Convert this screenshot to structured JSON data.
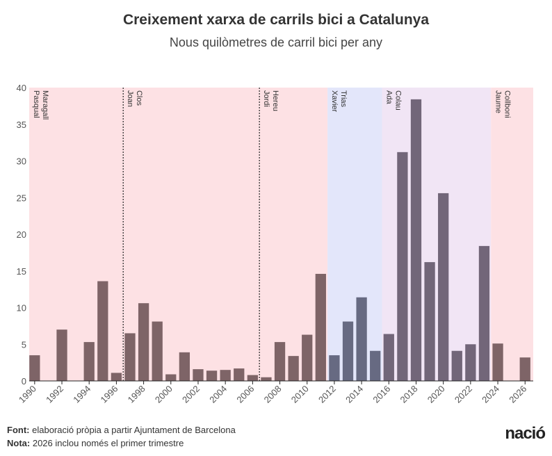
{
  "title": "Creixement xarxa de carrils bici a Catalunya",
  "subtitle": "Nous quilòmetres de carril bici per any",
  "footer": {
    "source_label": "Font:",
    "source_text": "elaboració pròpia a partir Ajuntament de Barcelona",
    "note_label": "Nota:",
    "note_text": "2026 inclou només el primer trimestre"
  },
  "logo": "nació",
  "colors": {
    "pink_band": "#fde1e4",
    "blue_band": "#e3e6fa",
    "purple_band": "#f1e5f5",
    "bar_brown": "#7e6467",
    "bar_blue": "#676a82",
    "bar_purple": "#726679",
    "axis": "#222222"
  },
  "chart_data": {
    "type": "bar",
    "title": "Creixement xarxa de carrils bici a Catalunya",
    "subtitle": "Nous quilòmetres de carril bici per any",
    "ylim": [
      0,
      40
    ],
    "yticks": [
      0,
      5,
      10,
      15,
      20,
      25,
      30,
      35,
      40
    ],
    "xticks": [
      1990,
      1992,
      1994,
      1996,
      1998,
      2000,
      2002,
      2004,
      2006,
      2008,
      2010,
      2012,
      2014,
      2016,
      2018,
      2020,
      2022,
      2024,
      2026
    ],
    "x": [
      1990,
      1991,
      1992,
      1993,
      1994,
      1995,
      1996,
      1997,
      1998,
      1999,
      2000,
      2001,
      2002,
      2003,
      2004,
      2005,
      2006,
      2007,
      2008,
      2009,
      2010,
      2011,
      2012,
      2013,
      2014,
      2015,
      2016,
      2017,
      2018,
      2019,
      2020,
      2021,
      2022,
      2023,
      2024,
      2025,
      2026
    ],
    "values": [
      3.5,
      0,
      7,
      0,
      5.3,
      13.6,
      1.1,
      6.5,
      10.6,
      8.1,
      0.9,
      3.9,
      1.6,
      1.4,
      1.5,
      1.7,
      0.8,
      0.5,
      5.3,
      3.4,
      6.3,
      14.6,
      3.5,
      8.1,
      11.4,
      4.1,
      6.4,
      31.2,
      38.4,
      16.2,
      25.6,
      4.1,
      5.0,
      18.4,
      5.1,
      0,
      3.2
    ],
    "mayors": [
      {
        "name": "Pasqual Maragall",
        "lines": [
          "Pasqual",
          "Maragall"
        ],
        "start": 1989.6,
        "end": 1996.5,
        "band": "pink",
        "dashed_start": false
      },
      {
        "name": "Joan Clos",
        "lines": [
          "Joan",
          "Clos"
        ],
        "start": 1996.5,
        "end": 2006.5,
        "band": "pink",
        "dashed_start": true
      },
      {
        "name": "Jordi Hereu",
        "lines": [
          "Jordi",
          "Hereu"
        ],
        "start": 2006.5,
        "end": 2011.5,
        "band": "pink",
        "dashed_start": true
      },
      {
        "name": "Xavier Trias",
        "lines": [
          "Xavier",
          "Trias"
        ],
        "start": 2011.5,
        "end": 2015.5,
        "band": "blue",
        "dashed_start": false
      },
      {
        "name": "Ada Colau",
        "lines": [
          "Ada",
          "Colau"
        ],
        "start": 2015.5,
        "end": 2023.5,
        "band": "purple",
        "dashed_start": false
      },
      {
        "name": "Jaume Collboni",
        "lines": [
          "Jaume",
          "Collboni"
        ],
        "start": 2023.5,
        "end": 2026.6,
        "band": "pink",
        "dashed_start": false
      }
    ]
  }
}
